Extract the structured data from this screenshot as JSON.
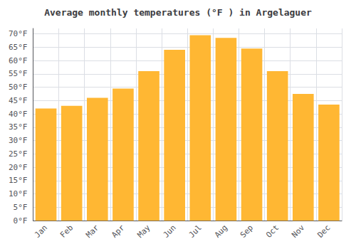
{
  "chart_data": {
    "type": "bar",
    "title": "Average monthly temperatures (°F ) in Argelaguer",
    "categories": [
      "Jan",
      "Feb",
      "Mar",
      "Apr",
      "May",
      "Jun",
      "Jul",
      "Aug",
      "Sep",
      "Oct",
      "Nov",
      "Dec"
    ],
    "values": [
      42,
      43,
      46,
      49.5,
      56,
      64,
      69.5,
      68.5,
      64.5,
      56,
      47.5,
      43.5
    ],
    "color": "#FFB733",
    "ylim": [
      0,
      72
    ],
    "yticks": [
      {
        "value": 0,
        "label": "0°F"
      },
      {
        "value": 5,
        "label": "5°F"
      },
      {
        "value": 10,
        "label": "10°F"
      },
      {
        "value": 15,
        "label": "15°F"
      },
      {
        "value": 20,
        "label": "20°F"
      },
      {
        "value": 25,
        "label": "25°F"
      },
      {
        "value": 30,
        "label": "30°F"
      },
      {
        "value": 35,
        "label": "35°F"
      },
      {
        "value": 40,
        "label": "40°F"
      },
      {
        "value": 45,
        "label": "45°F"
      },
      {
        "value": 50,
        "label": "50°F"
      },
      {
        "value": 55,
        "label": "55°F"
      },
      {
        "value": 60,
        "label": "60°F"
      },
      {
        "value": 65,
        "label": "65°F"
      },
      {
        "value": 70,
        "label": "70°F"
      }
    ],
    "grid": true
  }
}
